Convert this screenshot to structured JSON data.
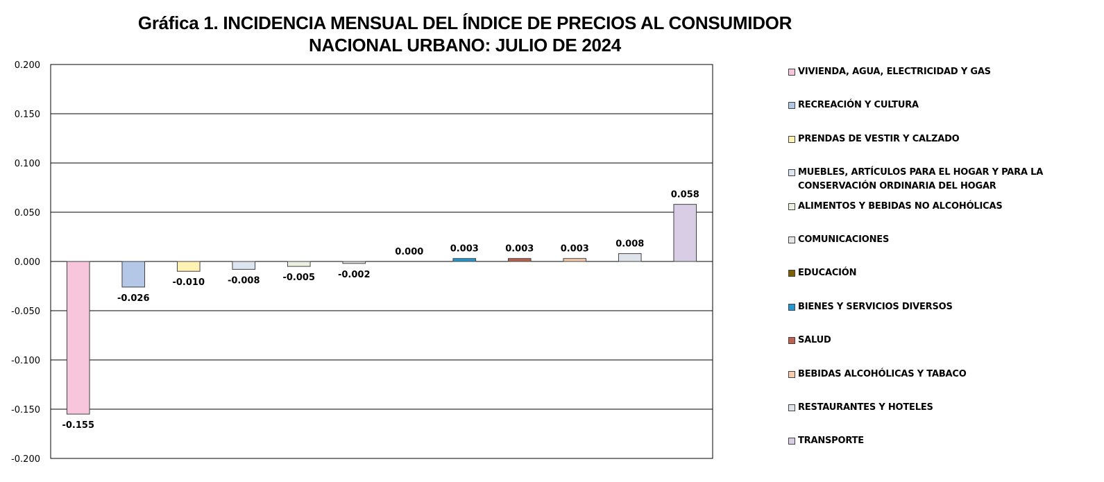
{
  "chart_data": {
    "type": "bar",
    "title_lines": [
      "Gráfica 1.  INCIDENCIA MENSUAL  DEL ÍNDICE DE PRECIOS AL CONSUMIDOR",
      "NACIONAL URBANO: JULIO DE 2024"
    ],
    "xlabel": "",
    "ylabel": "",
    "ylim": [
      -0.2,
      0.2
    ],
    "yticks": [
      0.2,
      0.15,
      0.1,
      0.05,
      0.0,
      -0.05,
      -0.1,
      -0.15,
      -0.2
    ],
    "ytick_labels": [
      "0.200",
      "0.150",
      "0.100",
      "0.050",
      "0.000",
      "-0.050",
      "-0.100",
      "-0.150",
      "-0.200"
    ],
    "grid": true,
    "legend_position": "right",
    "categories": [
      "VIVIENDA, AGUA, ELECTRICIDAD Y GAS",
      "RECREACIÓN Y CULTURA",
      "PRENDAS DE VESTIR Y CALZADO",
      "MUEBLES, ARTÍCULOS PARA EL HOGAR Y PARA LA CONSERVACIÓN ORDINARIA DEL HOGAR",
      "ALIMENTOS Y BEBIDAS NO ALCOHÓLICAS",
      "COMUNICACIONES",
      "EDUCACIÓN",
      "BIENES Y SERVICIOS DIVERSOS",
      "SALUD",
      "BEBIDAS ALCOHÓLICAS Y TABACO",
      "RESTAURANTES Y HOTELES",
      "TRANSPORTE"
    ],
    "legend_lines": [
      [
        "VIVIENDA, AGUA, ELECTRICIDAD Y GAS"
      ],
      [
        "RECREACIÓN Y CULTURA"
      ],
      [
        "PRENDAS DE VESTIR Y CALZADO"
      ],
      [
        "MUEBLES, ARTÍCULOS PARA EL HOGAR Y PARA LA",
        "CONSERVACIÓN ORDINARIA DEL HOGAR"
      ],
      [
        "ALIMENTOS Y BEBIDAS NO ALCOHÓLICAS"
      ],
      [
        "COMUNICACIONES"
      ],
      [
        "EDUCACIÓN"
      ],
      [
        "BIENES Y SERVICIOS DIVERSOS"
      ],
      [
        "SALUD"
      ],
      [
        "BEBIDAS ALCOHÓLICAS Y TABACO"
      ],
      [
        "RESTAURANTES Y HOTELES"
      ],
      [
        "TRANSPORTE"
      ]
    ],
    "values": [
      -0.155,
      -0.026,
      -0.01,
      -0.008,
      -0.005,
      -0.002,
      0.0,
      0.003,
      0.003,
      0.003,
      0.008,
      0.058
    ],
    "value_labels": [
      "-0.155",
      "-0.026",
      "-0.010",
      "-0.008",
      "-0.005",
      "-0.002",
      "0.000",
      "0.003",
      "0.003",
      "0.003",
      "0.008",
      "0.058"
    ],
    "colors": [
      "#f7c6dc",
      "#b4c7e7",
      "#fff2b3",
      "#dde5f0",
      "#ebf1de",
      "#e7e6e6",
      "#7f6000",
      "#1f9ad6",
      "#c0604d",
      "#f8cbad",
      "#dfe3ec",
      "#d9cde6"
    ]
  }
}
